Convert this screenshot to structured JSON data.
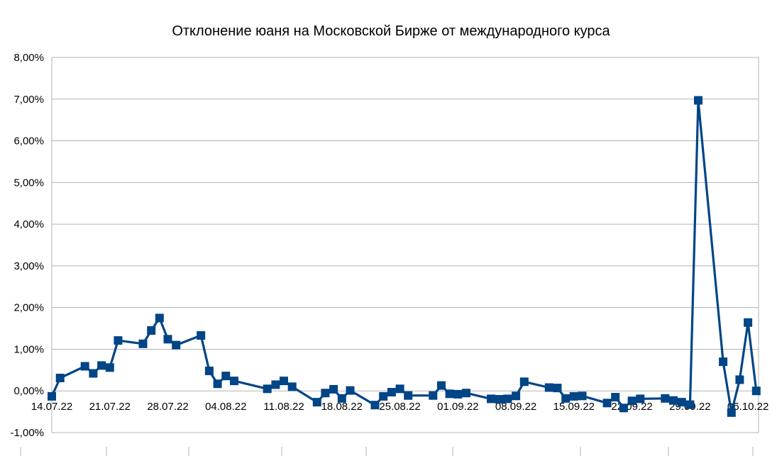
{
  "chart_data": {
    "type": "line",
    "title": "Отклонение юаня на Московской Бирже от международного курса",
    "xlabel": "",
    "ylabel": "",
    "ylim": [
      -1.0,
      8.0
    ],
    "y_ticks": [
      "8,00%",
      "7,00%",
      "6,00%",
      "5,00%",
      "4,00%",
      "3,00%",
      "2,00%",
      "1,00%",
      "0,00%",
      "-1,00%"
    ],
    "y_tick_values": [
      8,
      7,
      6,
      5,
      4,
      3,
      2,
      1,
      0,
      -1
    ],
    "x_ticks": [
      "14.07.22",
      "21.07.22",
      "28.07.22",
      "04.08.22",
      "11.08.22",
      "18.08.22",
      "25.08.22",
      "01.09.22",
      "08.09.22",
      "15.09.22",
      "22.09.22",
      "29.09.22",
      "06.10.22"
    ],
    "grid": true,
    "legend": "none",
    "series_color": "#004586",
    "series": [
      {
        "values": [
          [
            "2022-07-14",
            -0.13
          ],
          [
            "2022-07-15",
            0.31
          ],
          [
            "2022-07-18",
            0.59
          ],
          [
            "2022-07-19",
            0.42
          ],
          [
            "2022-07-20",
            0.61
          ],
          [
            "2022-07-21",
            0.56
          ],
          [
            "2022-07-22",
            1.21
          ],
          [
            "2022-07-25",
            1.13
          ],
          [
            "2022-07-26",
            1.45
          ],
          [
            "2022-07-27",
            1.75
          ],
          [
            "2022-07-28",
            1.24
          ],
          [
            "2022-07-29",
            1.1
          ],
          [
            "2022-08-01",
            1.33
          ],
          [
            "2022-08-02",
            0.48
          ],
          [
            "2022-08-03",
            0.17
          ],
          [
            "2022-08-04",
            0.36
          ],
          [
            "2022-08-05",
            0.24
          ],
          [
            "2022-08-09",
            0.05
          ],
          [
            "2022-08-10",
            0.15
          ],
          [
            "2022-08-11",
            0.24
          ],
          [
            "2022-08-12",
            0.1
          ],
          [
            "2022-08-15",
            -0.27
          ],
          [
            "2022-08-16",
            -0.05
          ],
          [
            "2022-08-17",
            0.04
          ],
          [
            "2022-08-18",
            -0.18
          ],
          [
            "2022-08-19",
            0.01
          ],
          [
            "2022-08-22",
            -0.34
          ],
          [
            "2022-08-23",
            -0.13
          ],
          [
            "2022-08-24",
            -0.03
          ],
          [
            "2022-08-25",
            0.05
          ],
          [
            "2022-08-26",
            -0.11
          ],
          [
            "2022-08-29",
            -0.11
          ],
          [
            "2022-08-30",
            0.13
          ],
          [
            "2022-08-31",
            -0.07
          ],
          [
            "2022-09-01",
            -0.08
          ],
          [
            "2022-09-02",
            -0.05
          ],
          [
            "2022-09-05",
            -0.19
          ],
          [
            "2022-09-06",
            -0.2
          ],
          [
            "2022-09-07",
            -0.19
          ],
          [
            "2022-09-08",
            -0.12
          ],
          [
            "2022-09-09",
            0.22
          ],
          [
            "2022-09-12",
            0.08
          ],
          [
            "2022-09-13",
            0.07
          ],
          [
            "2022-09-14",
            -0.18
          ],
          [
            "2022-09-15",
            -0.13
          ],
          [
            "2022-09-16",
            -0.12
          ],
          [
            "2022-09-19",
            -0.29
          ],
          [
            "2022-09-20",
            -0.15
          ],
          [
            "2022-09-21",
            -0.41
          ],
          [
            "2022-09-22",
            -0.24
          ],
          [
            "2022-09-23",
            -0.19
          ],
          [
            "2022-09-26",
            -0.18
          ],
          [
            "2022-09-27",
            -0.23
          ],
          [
            "2022-09-28",
            -0.27
          ],
          [
            "2022-09-29",
            -0.33
          ],
          [
            "2022-09-30",
            6.97
          ],
          [
            "2022-10-03",
            0.7
          ],
          [
            "2022-10-04",
            -0.52
          ],
          [
            "2022-10-05",
            0.27
          ],
          [
            "2022-10-06",
            1.64
          ],
          [
            "2022-10-07",
            0.0
          ]
        ]
      }
    ]
  }
}
